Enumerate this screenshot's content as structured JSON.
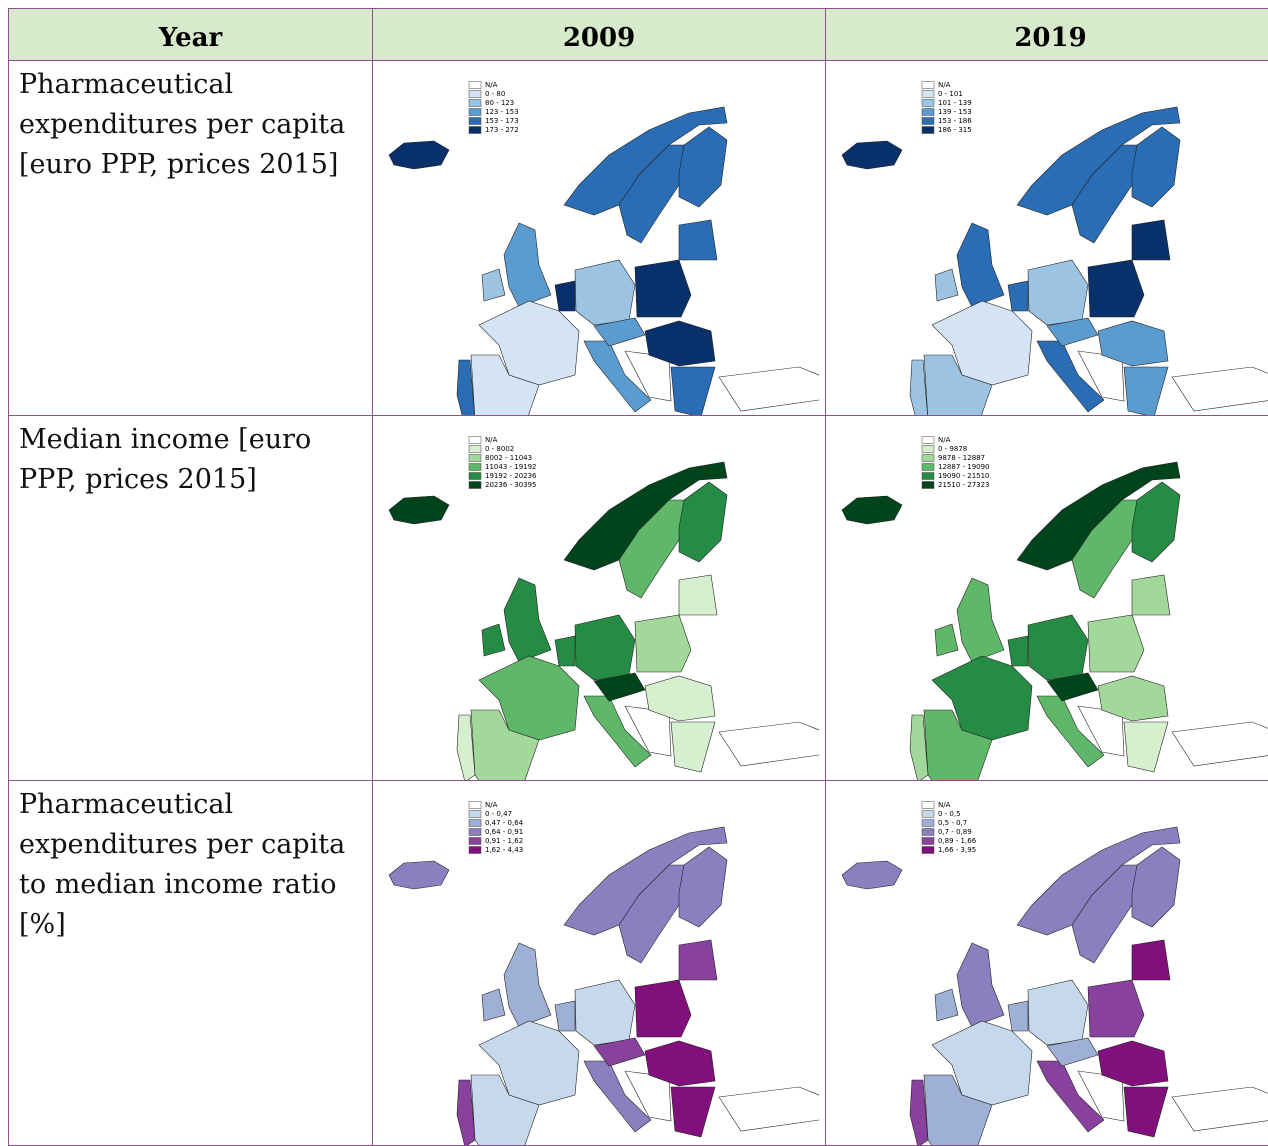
{
  "header": [
    "Year",
    "2009",
    "2019"
  ],
  "rows": [
    {
      "label": "Pharmaceutical expenditures per capita [euro PPP, prices 2015]",
      "maps": [
        {
          "legend": [
            {
              "label": "N/A",
              "color": "#ffffff"
            },
            {
              "label": "0 - 80",
              "color": "#d4e4f4"
            },
            {
              "label": "80 - 123",
              "color": "#9dc3e2"
            },
            {
              "label": "123 - 153",
              "color": "#5a9bd0"
            },
            {
              "label": "153 - 173",
              "color": "#2a6db5"
            },
            {
              "label": "173 - 272",
              "color": "#08306b"
            }
          ]
        },
        {
          "legend": [
            {
              "label": "N/A",
              "color": "#ffffff"
            },
            {
              "label": "0 - 101",
              "color": "#d4e4f4"
            },
            {
              "label": "101 - 139",
              "color": "#9dc3e2"
            },
            {
              "label": "139 - 153",
              "color": "#5a9bd0"
            },
            {
              "label": "153 - 186",
              "color": "#2a6db5"
            },
            {
              "label": "186 - 315",
              "color": "#08306b"
            }
          ]
        }
      ]
    },
    {
      "label": "Median income [euro PPP, prices 2015]",
      "maps": [
        {
          "legend": [
            {
              "label": "N/A",
              "color": "#ffffff"
            },
            {
              "label": "0 - 8002",
              "color": "#d5efcf"
            },
            {
              "label": "8002 - 11043",
              "color": "#a2d99b"
            },
            {
              "label": "11043 - 19192",
              "color": "#5fb76a"
            },
            {
              "label": "19192 - 20236",
              "color": "#268b45"
            },
            {
              "label": "20236 - 30395",
              "color": "#00441b"
            }
          ]
        },
        {
          "legend": [
            {
              "label": "N/A",
              "color": "#ffffff"
            },
            {
              "label": "0 - 9878",
              "color": "#d5efcf"
            },
            {
              "label": "9878 - 12887",
              "color": "#a2d99b"
            },
            {
              "label": "12887 - 19090",
              "color": "#5fb76a"
            },
            {
              "label": "19090 - 21510",
              "color": "#268b45"
            },
            {
              "label": "21510 - 27323",
              "color": "#00441b"
            }
          ]
        }
      ]
    },
    {
      "label": "Pharmaceutical expenditures per capita to median income ratio [%]",
      "maps": [
        {
          "legend": [
            {
              "label": "N/A",
              "color": "#ffffff"
            },
            {
              "label": "0 - 0,47",
              "color": "#c6d9ec"
            },
            {
              "label": "0,47 - 0,64",
              "color": "#9fb0d6"
            },
            {
              "label": "0,64 - 0,91",
              "color": "#8c7fbf"
            },
            {
              "label": "0,91 - 1,62",
              "color": "#88419d"
            },
            {
              "label": "1,62 - 4,43",
              "color": "#810f7c"
            }
          ]
        },
        {
          "legend": [
            {
              "label": "N/A",
              "color": "#ffffff"
            },
            {
              "label": "0 - 0,5",
              "color": "#c6d9ec"
            },
            {
              "label": "0,5 - 0,7",
              "color": "#9fb0d6"
            },
            {
              "label": "0,7 - 0,89",
              "color": "#8c7fbf"
            },
            {
              "label": "0,89 - 1,66",
              "color": "#88419d"
            },
            {
              "label": "1,66 - 3,95",
              "color": "#810f7c"
            }
          ]
        }
      ]
    }
  ]
}
